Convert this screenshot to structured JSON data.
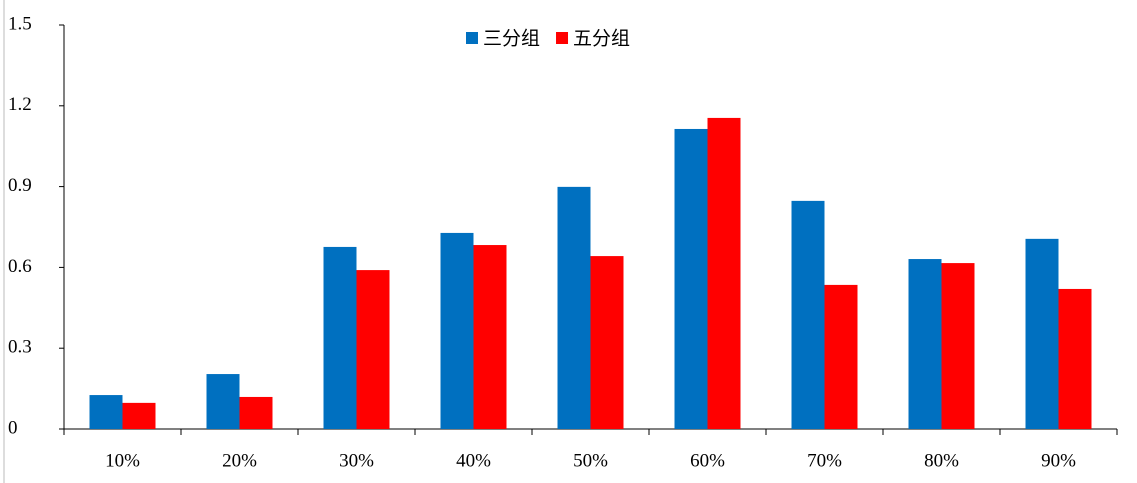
{
  "chart_data": {
    "type": "bar",
    "categories": [
      "10%",
      "20%",
      "30%",
      "40%",
      "50%",
      "60%",
      "70%",
      "80%",
      "90%"
    ],
    "series": [
      {
        "name": "三分组",
        "color": "#0070c0",
        "values": [
          0.126,
          0.204,
          0.676,
          0.728,
          0.899,
          1.114,
          0.847,
          0.631,
          0.706
        ]
      },
      {
        "name": "五分组",
        "color": "#ff0000",
        "values": [
          0.097,
          0.119,
          0.59,
          0.683,
          0.642,
          1.155,
          0.535,
          0.616,
          0.52
        ]
      }
    ],
    "ylim": [
      0,
      1.5
    ],
    "yticks": [
      0,
      0.3,
      0.6,
      0.9,
      1.2,
      1.5
    ],
    "legend": "top"
  }
}
